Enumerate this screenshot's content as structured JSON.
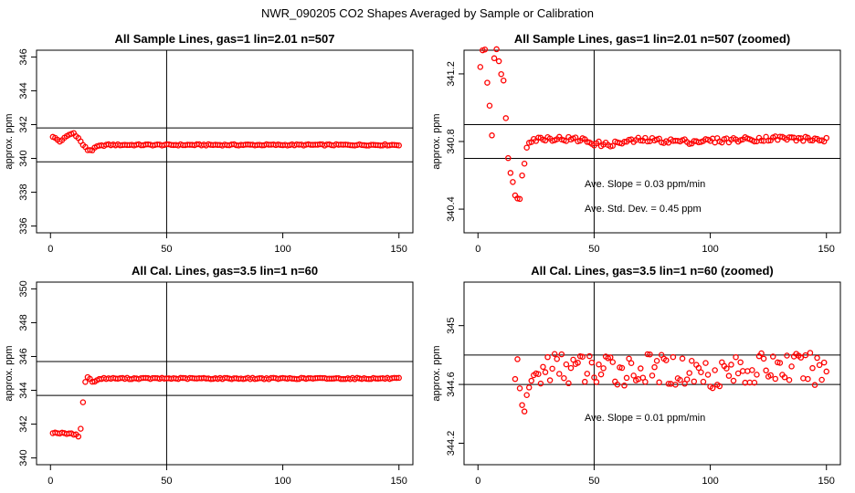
{
  "title": "NWR_090205  CO2 Shapes Averaged by Sample or Calibration",
  "chart_data": [
    {
      "type": "scatter",
      "title": "All Sample Lines, gas=1 lin=2.01 n=507",
      "xlabel": "",
      "ylabel": "approx. ppm",
      "xlim": [
        0,
        150
      ],
      "ylim": [
        336,
        346
      ],
      "xticks": [
        0,
        50,
        100,
        150
      ],
      "yticks": [
        336,
        338,
        340,
        342,
        344,
        346
      ],
      "marker_color": "#ff0000",
      "hlines": [
        341.8,
        339.8
      ],
      "vlines": [
        50
      ],
      "annotations": [],
      "profile": [
        [
          1,
          341.3
        ],
        [
          4,
          341.0
        ],
        [
          8,
          341.4
        ],
        [
          10,
          341.5
        ],
        [
          12,
          341.2
        ],
        [
          14,
          340.8
        ],
        [
          16,
          340.5
        ],
        [
          18,
          340.5
        ],
        [
          20,
          340.7
        ],
        [
          24,
          340.8
        ],
        [
          150,
          340.8
        ]
      ]
    },
    {
      "type": "scatter",
      "title": "All Sample Lines, gas=1 lin=2.01 n=507 (zoomed)",
      "xlabel": "",
      "ylabel": "approx. ppm",
      "xlim": [
        0,
        150
      ],
      "ylim": [
        340.3,
        341.3
      ],
      "xticks": [
        0,
        50,
        100,
        150
      ],
      "yticks": [
        340.4,
        340.8,
        341.2
      ],
      "marker_color": "#ff0000",
      "hlines": [
        340.9,
        340.7
      ],
      "vlines": [
        50
      ],
      "annotations": [
        "Ave. Slope =  0.03  ppm/min",
        "Ave. Std. Dev. =  0.45  ppm"
      ],
      "profile": [
        [
          1,
          341.25
        ],
        [
          2,
          341.32
        ],
        [
          3,
          341.36
        ],
        [
          4,
          341.15
        ],
        [
          5,
          341.0
        ],
        [
          6,
          340.84
        ],
        [
          7,
          341.3
        ],
        [
          8,
          341.36
        ],
        [
          9,
          341.28
        ],
        [
          10,
          341.2
        ],
        [
          11,
          341.18
        ],
        [
          12,
          340.95
        ],
        [
          13,
          340.7
        ],
        [
          14,
          340.6
        ],
        [
          15,
          340.55
        ],
        [
          16,
          340.5
        ],
        [
          17,
          340.48
        ],
        [
          18,
          340.45
        ],
        [
          19,
          340.6
        ],
        [
          20,
          340.68
        ],
        [
          21,
          340.78
        ],
        [
          22,
          340.81
        ],
        [
          30,
          340.82
        ],
        [
          45,
          340.81
        ],
        [
          50,
          340.79
        ],
        [
          55,
          340.78
        ],
        [
          70,
          340.81
        ],
        [
          90,
          340.8
        ],
        [
          110,
          340.81
        ],
        [
          130,
          340.82
        ],
        [
          150,
          340.81
        ]
      ]
    },
    {
      "type": "scatter",
      "title": "All Cal. Lines, gas=3.5 lin=1 n=60",
      "xlabel": "",
      "ylabel": "approx. ppm",
      "xlim": [
        0,
        150
      ],
      "ylim": [
        340,
        350
      ],
      "xticks": [
        0,
        50,
        100,
        150
      ],
      "yticks": [
        340,
        342,
        344,
        346,
        348,
        350
      ],
      "marker_color": "#ff0000",
      "hlines": [
        345.7,
        343.7
      ],
      "vlines": [
        50
      ],
      "annotations": [],
      "profile": [
        [
          1,
          341.5
        ],
        [
          11,
          341.4
        ],
        [
          12,
          341.3
        ],
        [
          13,
          341.7
        ],
        [
          14,
          343.3
        ],
        [
          15,
          344.5
        ],
        [
          16,
          344.8
        ],
        [
          18,
          344.5
        ],
        [
          22,
          344.7
        ],
        [
          150,
          344.7
        ]
      ]
    },
    {
      "type": "scatter",
      "title": "All Cal. Lines, gas=3.5 lin=1 n=60 (zoomed)",
      "xlabel": "",
      "ylabel": "approx. ppm",
      "xlim": [
        0,
        150
      ],
      "ylim": [
        344.1,
        345.25
      ],
      "xticks": [
        0,
        50,
        100,
        150
      ],
      "yticks": [
        344.2,
        344.6,
        345.0
      ],
      "marker_color": "#ff0000",
      "hlines": [
        344.8,
        344.6
      ],
      "vlines": [
        50
      ],
      "annotations": [
        "Ave. Slope =  0.01  ppm/min"
      ],
      "profile": [
        [
          15,
          344.45
        ],
        [
          17,
          344.8
        ],
        [
          18,
          344.6
        ],
        [
          19,
          344.42
        ],
        [
          20,
          344.4
        ],
        [
          22,
          344.6
        ],
        [
          30,
          344.72
        ],
        [
          50,
          344.7
        ],
        [
          80,
          344.7
        ],
        [
          100,
          344.68
        ],
        [
          130,
          344.72
        ],
        [
          150,
          344.7
        ]
      ]
    }
  ]
}
